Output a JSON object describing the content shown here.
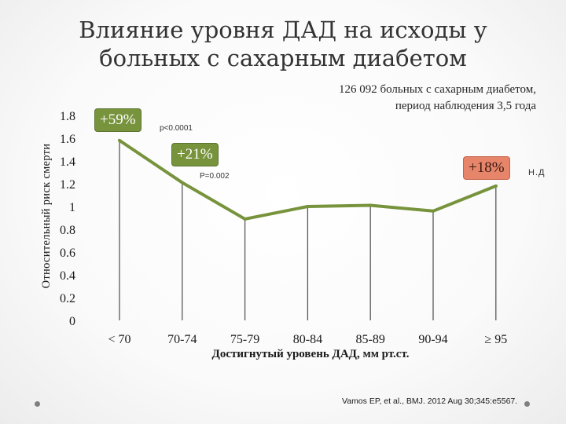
{
  "slide": {
    "title_line1": "Влияние уровня ДАД на исходы у",
    "title_line2": "больных с сахарным диабетом",
    "study_line1": "126 092 больных с сахарным диабетом,",
    "study_line2": "период наблюдения 3,5 года",
    "source": "Vamos EP, et al., BMJ. 2012 Aug 30;345:e5567."
  },
  "annotations": {
    "a1": {
      "label": "+59%",
      "note": "p<0.0001"
    },
    "a2": {
      "label": "+21%",
      "note": "P=0.002"
    },
    "a3": {
      "label": "+18%",
      "note": "Н.Д"
    }
  },
  "colors": {
    "line": "#77933c",
    "callout_green": "#77933c",
    "callout_red": "#e6856a"
  },
  "chart_data": {
    "type": "line",
    "title": "",
    "xlabel": "Достигнутый уровень ДАД, мм рт.ст.",
    "ylabel": "Относительный риск смерти",
    "categories": [
      "< 70",
      "70-74",
      "75-79",
      "80-84",
      "85-89",
      "90-94",
      "≥ 95"
    ],
    "series": [
      {
        "values": [
          1.58,
          1.21,
          0.89,
          1.0,
          1.01,
          0.96,
          1.18
        ]
      }
    ],
    "ylim": [
      0,
      1.8
    ],
    "yticks": [
      "0",
      "0.2",
      "0.4",
      "0.6",
      "0.8",
      "1",
      "1.2",
      "1.4",
      "1.6",
      "1.8"
    ],
    "grid": false,
    "drop_lines": true
  }
}
